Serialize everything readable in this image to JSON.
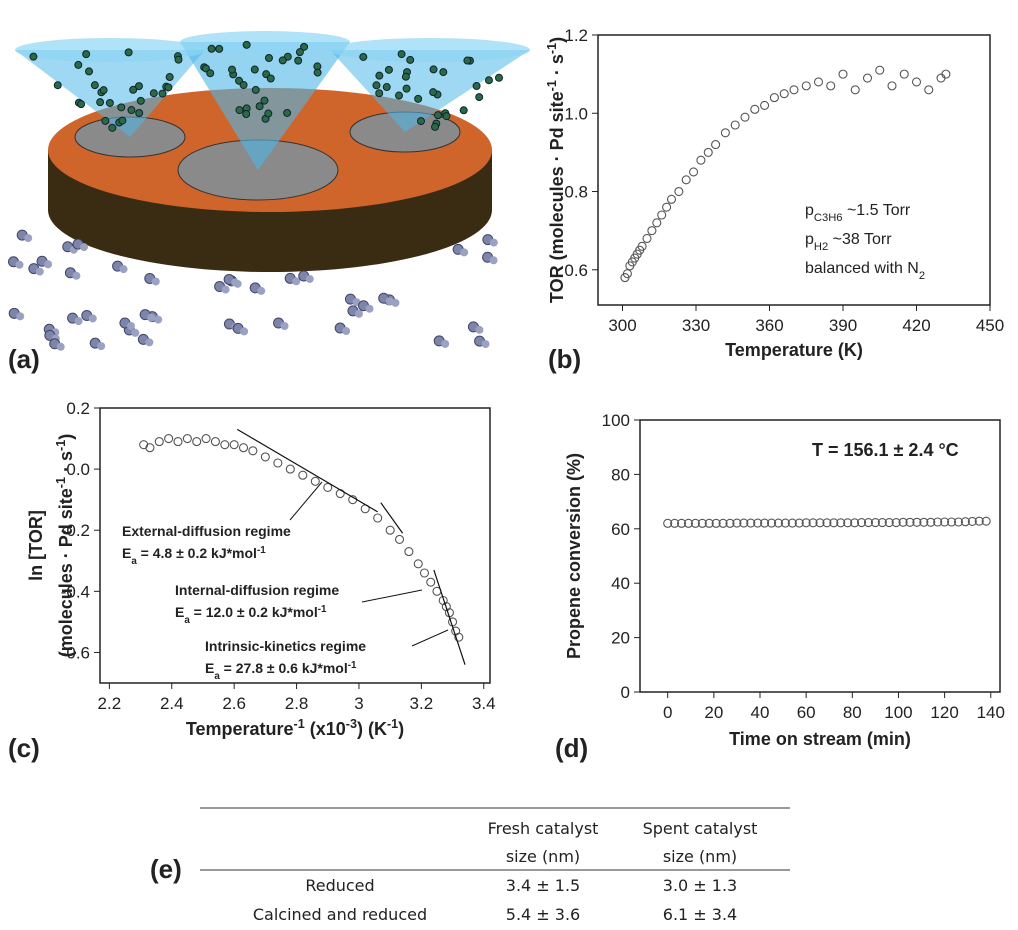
{
  "panels": [
    "(a)",
    "(b)",
    "(c)",
    "(d)",
    "(e)"
  ],
  "chart_data": [
    {
      "type": "scatter",
      "xlabel": "Temperature (K)",
      "ylabel": [
        "TOR (molecules · Pd site",
        "-1",
        " · s",
        "-1",
        ")"
      ],
      "x": [
        301,
        302,
        303,
        304,
        305,
        306,
        307,
        308,
        310,
        312,
        314,
        316,
        318,
        320,
        323,
        326,
        329,
        332,
        335,
        338,
        342,
        346,
        350,
        354,
        358,
        362,
        366,
        370,
        375,
        380,
        385,
        390,
        395,
        400,
        405,
        410,
        415,
        420,
        425,
        430,
        432
      ],
      "values": [
        0.58,
        0.59,
        0.61,
        0.62,
        0.63,
        0.64,
        0.65,
        0.66,
        0.68,
        0.7,
        0.72,
        0.74,
        0.76,
        0.78,
        0.8,
        0.83,
        0.85,
        0.88,
        0.9,
        0.92,
        0.95,
        0.97,
        0.99,
        1.01,
        1.02,
        1.04,
        1.05,
        1.06,
        1.07,
        1.08,
        1.07,
        1.1,
        1.06,
        1.09,
        1.11,
        1.07,
        1.1,
        1.08,
        1.06,
        1.09,
        1.1
      ],
      "color": "#555555",
      "xlim": [
        290,
        450
      ],
      "xticks": [
        300,
        330,
        360,
        390,
        420,
        450
      ],
      "ylim": [
        0.51,
        1.2
      ],
      "yticks": [
        0.6,
        0.8,
        {
          "value": 1,
          "label": "1.0"
        },
        1.2
      ],
      "annotation": [
        [
          "p",
          "C3H6",
          " ~1.5 Torr"
        ],
        [
          "p",
          "H2",
          " ~38 Torr"
        ],
        [
          "balanced with N",
          "2"
        ]
      ]
    },
    {
      "type": "scatter",
      "xlabel": [
        "Temperature",
        "-1",
        " (x10",
        "-3",
        ") (K",
        "-1",
        ")"
      ],
      "ylabel": "ln [TOR]",
      "ylabel_units": [
        "(molecules · Pd site",
        "-1",
        " · s",
        "-1",
        ")"
      ],
      "x": [
        2.31,
        2.33,
        2.36,
        2.39,
        2.42,
        2.45,
        2.48,
        2.51,
        2.54,
        2.57,
        2.6,
        2.63,
        2.66,
        2.7,
        2.74,
        2.78,
        2.82,
        2.86,
        2.9,
        2.94,
        2.98,
        3.02,
        3.06,
        3.1,
        3.13,
        3.16,
        3.19,
        3.21,
        3.23,
        3.25,
        3.27,
        3.28,
        3.29,
        3.3,
        3.31,
        3.32
      ],
      "values": [
        0.08,
        0.07,
        0.09,
        0.1,
        0.09,
        0.1,
        0.09,
        0.1,
        0.09,
        0.08,
        0.08,
        0.07,
        0.06,
        0.04,
        0.02,
        0.0,
        -0.02,
        -0.04,
        -0.06,
        -0.08,
        -0.1,
        -0.13,
        -0.16,
        -0.2,
        -0.23,
        -0.27,
        -0.31,
        -0.34,
        -0.37,
        -0.4,
        -0.43,
        -0.45,
        -0.47,
        -0.5,
        -0.53,
        -0.55
      ],
      "color": "#555555",
      "xlim": [
        2.17,
        3.42
      ],
      "xticks": [
        2.2,
        2.4,
        2.6,
        2.8,
        3.0,
        3.2,
        3.4
      ],
      "ylim": [
        -0.7,
        0.2
      ],
      "yticks": [
        -0.6,
        -0.4,
        -0.2,
        {
          "value": 0,
          "label": "0.0"
        },
        0.2
      ],
      "fits": [
        {
          "x": [
            2.61,
            3.06
          ],
          "y": [
            0.13,
            -0.14
          ]
        },
        {
          "x": [
            3.07,
            3.14
          ],
          "y": [
            -0.11,
            -0.21
          ]
        },
        {
          "x": [
            3.24,
            3.34
          ],
          "y": [
            -0.33,
            -0.64
          ]
        }
      ],
      "annotations": [
        {
          "title": "External-diffusion regime",
          "ea": [
            "E",
            "a",
            " = 4.8 ± 0.2 kJ*mol",
            "-1"
          ]
        },
        {
          "title": "Internal-diffusion regime",
          "ea": [
            "E",
            "a",
            " = 12.0 ± 0.2 kJ*mol",
            "-1"
          ]
        },
        {
          "title": "Intrinsic-kinetics regime",
          "ea": [
            "E",
            "a",
            " = 27.8 ± 0.6 kJ*mol",
            "-1"
          ]
        }
      ]
    },
    {
      "type": "scatter",
      "xlabel": "Time on stream (min)",
      "ylabel": "Propene conversion (%)",
      "x": [
        0,
        3,
        6,
        9,
        12,
        15,
        18,
        21,
        24,
        27,
        30,
        33,
        36,
        39,
        42,
        45,
        48,
        51,
        54,
        57,
        60,
        63,
        66,
        69,
        72,
        75,
        78,
        81,
        84,
        87,
        90,
        93,
        96,
        99,
        102,
        105,
        108,
        111,
        114,
        117,
        120,
        123,
        126,
        129,
        132,
        135,
        138
      ],
      "values": [
        62.0,
        62.0,
        62.0,
        62.0,
        62.0,
        62.0,
        62.0,
        62.0,
        62.0,
        62.0,
        62.1,
        62.1,
        62.1,
        62.1,
        62.1,
        62.1,
        62.1,
        62.1,
        62.1,
        62.1,
        62.2,
        62.2,
        62.2,
        62.2,
        62.2,
        62.2,
        62.2,
        62.2,
        62.3,
        62.3,
        62.3,
        62.3,
        62.3,
        62.3,
        62.4,
        62.4,
        62.4,
        62.4,
        62.4,
        62.5,
        62.5,
        62.5,
        62.5,
        62.6,
        62.7,
        62.8,
        62.8
      ],
      "color": "#555555",
      "xlim": [
        -12,
        144
      ],
      "xticks": [
        0,
        20,
        40,
        60,
        80,
        100,
        120,
        140
      ],
      "ylim": [
        0,
        100
      ],
      "yticks": [
        0,
        20,
        40,
        60,
        80,
        100
      ],
      "annotation": "T = 156.1 ± 2.4 °C"
    }
  ],
  "table": {
    "columns": [
      [
        "Fresh catalyst",
        "size (nm)"
      ],
      [
        "Spent catalyst",
        "size (nm)"
      ]
    ],
    "rows": [
      [
        "Reduced",
        "3.4 ± 1.5",
        "3.0 ± 1.3"
      ],
      [
        "Calcined and reduced",
        "5.4 ± 3.6",
        "6.1 ± 3.4"
      ]
    ]
  }
}
